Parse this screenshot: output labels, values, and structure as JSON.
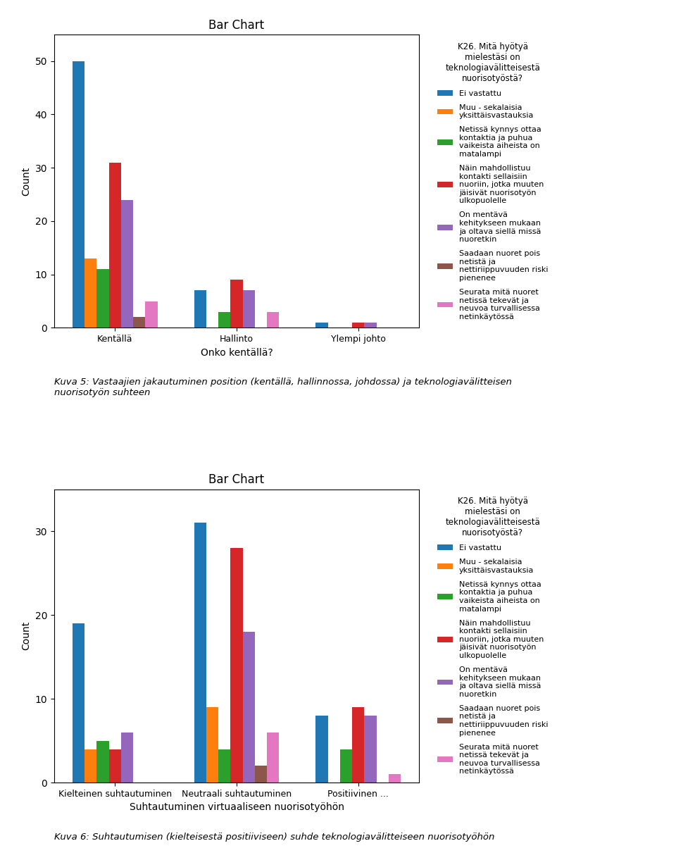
{
  "chart_data": [
    {
      "type": "bar",
      "title": "Bar Chart",
      "xlabel": "Onko kentällä?",
      "ylabel": "Count",
      "categories": [
        "Kentällä",
        "Hallinto",
        "Ylempi johto"
      ],
      "series": [
        {
          "name": "Ei vastattu",
          "values": [
            50,
            7,
            1
          ]
        },
        {
          "name": "Muu - sekalaisia\nyksittäisvastauksia",
          "values": [
            13,
            0,
            0
          ]
        },
        {
          "name": "Netissä kynnys ottaa\nkontaktia ja puhua\nvaikeista aiheista on\nmatalampi",
          "values": [
            11,
            3,
            0
          ]
        },
        {
          "name": "Näin mahdollistuu\nkontakti sellaisiin\nnuoriin, jotka muuten\njäisivät nuorisotyön\nulkopuolelle",
          "values": [
            31,
            9,
            1
          ]
        },
        {
          "name": "On mentävä\nkehitykseen mukaan\nja oltava siellä missä\nnuoretkin",
          "values": [
            24,
            7,
            1
          ]
        },
        {
          "name": "Saadaan nuoret pois\nnetistä ja\nnettiriippuvuuden riski\npienenee",
          "values": [
            2,
            0,
            0
          ]
        },
        {
          "name": "Seurata mitä nuoret\nnetissä tekevät ja\nneuvoa turvallisessa\nnetinkäytössä",
          "values": [
            5,
            3,
            0
          ]
        }
      ],
      "ylim": [
        0,
        55
      ],
      "yticks": [
        0,
        10,
        20,
        30,
        40,
        50
      ],
      "grid": false,
      "legend": "center left",
      "legend_title": "K26. Mitä hyötyä\nmielestäsi on\nteknologiavälitteisestä\nnuorisotyöstä?",
      "caption": "Kuva 5: Vastaajien jakautuminen position (kentällä, hallinnossa, johdossa) ja teknologiavälitteisen\nnuorisotyön suhteen"
    },
    {
      "type": "bar",
      "title": "Bar Chart",
      "xlabel": "Suhtautuminen virtuaaliseen nuorisotyöhön",
      "ylabel": "Count",
      "categories": [
        "Kielteinen suhtautuminen",
        "Neutraali suhtautuminen",
        "Positiivinen ..."
      ],
      "series": [
        {
          "name": "Ei vastattu",
          "values": [
            19,
            31,
            8
          ]
        },
        {
          "name": "Muu - sekalaisia\nyksittäisvastauksia",
          "values": [
            4,
            9,
            0
          ]
        },
        {
          "name": "Netissä kynnys ottaa\nkontaktia ja puhua\nvaikeista aiheista on\nmatalampi",
          "values": [
            5,
            4,
            4
          ]
        },
        {
          "name": "Näin mahdollistuu\nkontakti sellaisiin\nnuoriin, jotka muuten\njäisivät nuorisotyön\nulkopuolelle",
          "values": [
            4,
            28,
            9
          ]
        },
        {
          "name": "On mentävä\nkehitykseen mukaan\nja oltava siellä missä\nnuoretkin",
          "values": [
            6,
            18,
            8
          ]
        },
        {
          "name": "Saadaan nuoret pois\nnetistä ja\nnettiriippuvuuden riski\npienenee",
          "values": [
            0,
            2,
            0
          ]
        },
        {
          "name": "Seurata mitä nuoret\nnetissä tekevät ja\nneuvoa turvallisessa\nnetinkäytössä",
          "values": [
            0,
            6,
            1
          ]
        }
      ],
      "ylim": [
        0,
        35
      ],
      "yticks": [
        0,
        10,
        20,
        30
      ],
      "grid": false,
      "legend": "center left",
      "legend_title": "K26. Mitä hyötyä\nmielestäsi on\nteknologiavälitteisestä\nnuorisotyöstä?",
      "caption": "Kuva 6: Suhtautumisen (kielteisestä positiiviseen) suhde teknologiavälitteiseen nuorisotyöhön"
    }
  ]
}
